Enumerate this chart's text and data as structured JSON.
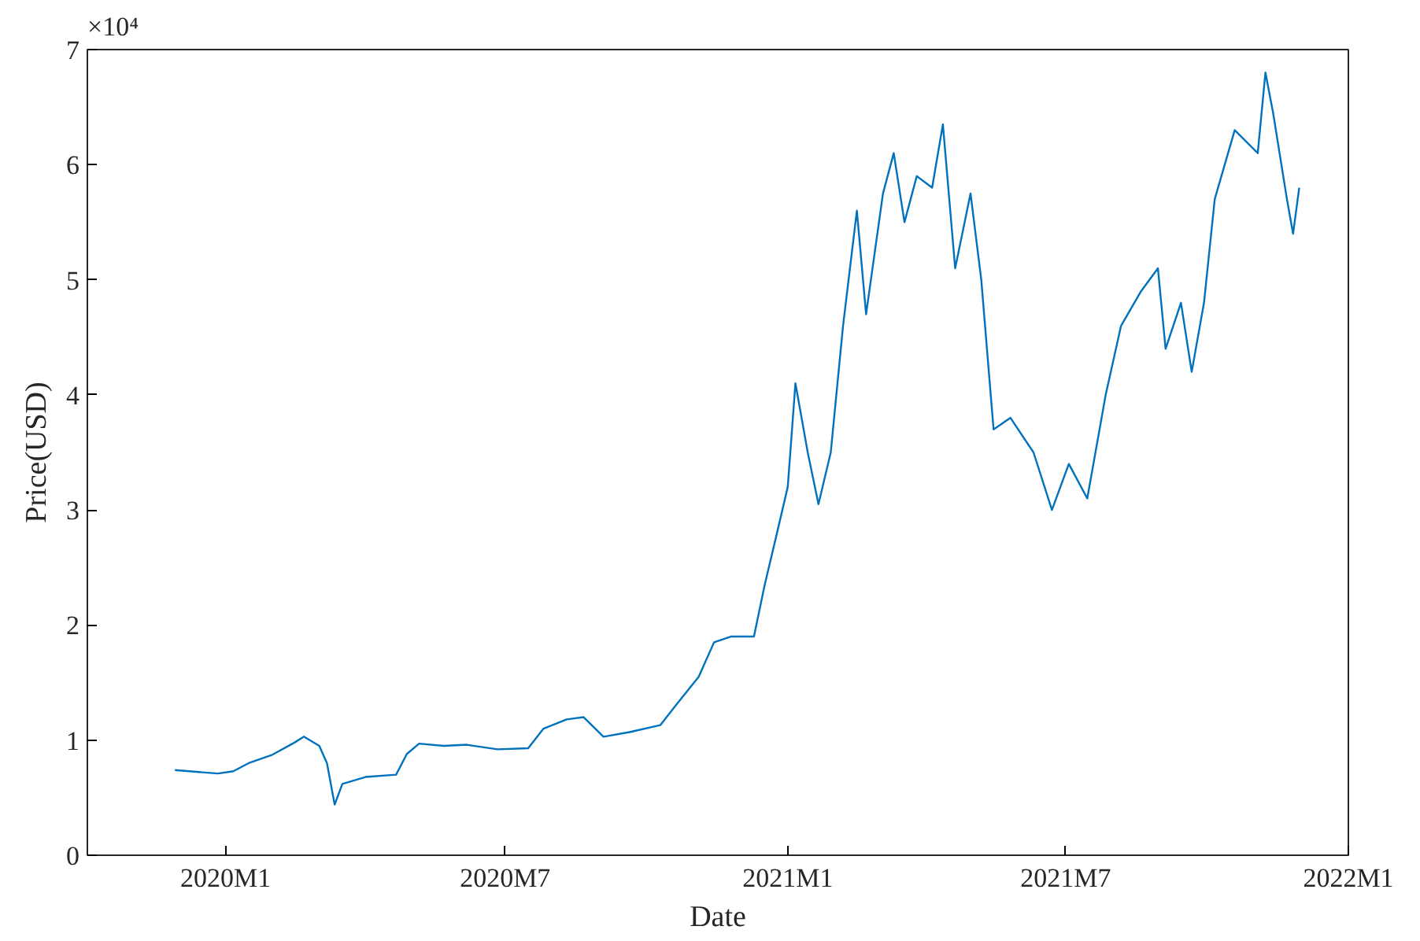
{
  "chart_data": {
    "type": "line",
    "xlabel": "Date",
    "ylabel": "Price(USD)",
    "annotations": [
      "×10⁴"
    ],
    "x": [
      "2019-11-29",
      "2019-12-17",
      "2019-12-27",
      "2020-01-06",
      "2020-01-16",
      "2020-01-31",
      "2020-02-15",
      "2020-02-21",
      "2020-03-02",
      "2020-03-07",
      "2020-03-12",
      "2020-03-17",
      "2020-04-01",
      "2020-04-21",
      "2020-04-28",
      "2020-05-06",
      "2020-05-22",
      "2020-06-06",
      "2020-06-26",
      "2020-07-16",
      "2020-07-26",
      "2020-08-10",
      "2020-08-21",
      "2020-09-03",
      "2020-09-20",
      "2020-10-10",
      "2020-10-20",
      "2020-11-04",
      "2020-11-14",
      "2020-11-25",
      "2020-12-10",
      "2020-12-17",
      "2020-12-25",
      "2021-01-01",
      "2021-01-06",
      "2021-01-14",
      "2021-01-21",
      "2021-01-29",
      "2021-02-06",
      "2021-02-15",
      "2021-02-21",
      "2021-03-04",
      "2021-03-11",
      "2021-03-18",
      "2021-03-26",
      "2021-04-05",
      "2021-04-12",
      "2021-04-20",
      "2021-04-30",
      "2021-05-07",
      "2021-05-15",
      "2021-05-26",
      "2021-06-10",
      "2021-06-22",
      "2021-07-03",
      "2021-07-15",
      "2021-07-27",
      "2021-08-06",
      "2021-08-19",
      "2021-08-30",
      "2021-09-04",
      "2021-09-14",
      "2021-09-21",
      "2021-09-29",
      "2021-10-06",
      "2021-10-19",
      "2021-11-03",
      "2021-11-08",
      "2021-11-13",
      "2021-11-22",
      "2021-11-26",
      "2021-11-30"
    ],
    "series": [
      {
        "color": "#0072bd",
        "values": [
          0.74,
          0.72,
          0.71,
          0.73,
          0.8,
          0.87,
          0.98,
          1.03,
          0.95,
          0.8,
          0.44,
          0.62,
          0.68,
          0.7,
          0.88,
          0.97,
          0.95,
          0.96,
          0.92,
          0.93,
          1.1,
          1.18,
          1.2,
          1.03,
          1.07,
          1.13,
          1.3,
          1.55,
          1.85,
          1.9,
          1.9,
          2.35,
          2.8,
          3.2,
          4.1,
          3.5,
          3.05,
          3.5,
          4.6,
          5.6,
          4.7,
          5.75,
          6.1,
          5.5,
          5.9,
          5.8,
          6.35,
          5.1,
          5.75,
          5.0,
          3.7,
          3.8,
          3.5,
          3.0,
          3.4,
          3.1,
          4.0,
          4.6,
          4.9,
          5.1,
          4.4,
          4.8,
          4.2,
          4.8,
          5.7,
          6.3,
          6.1,
          6.8,
          6.45,
          5.7,
          5.4,
          5.8
        ]
      }
    ],
    "xlim": [
      "2019-10-03",
      "2022-01-01"
    ],
    "xticks": [
      {
        "value": "2020-01-01",
        "label": "2020M1"
      },
      {
        "value": "2020-07-01",
        "label": "2020M7"
      },
      {
        "value": "2021-01-01",
        "label": "2021M1"
      },
      {
        "value": "2021-07-01",
        "label": "2021M7"
      },
      {
        "value": "2022-01-01",
        "label": "2022M1"
      }
    ],
    "ylim": [
      0,
      7
    ],
    "yticks": [
      0,
      1,
      2,
      3,
      4,
      5,
      6,
      7
    ],
    "line_style": "solid"
  }
}
